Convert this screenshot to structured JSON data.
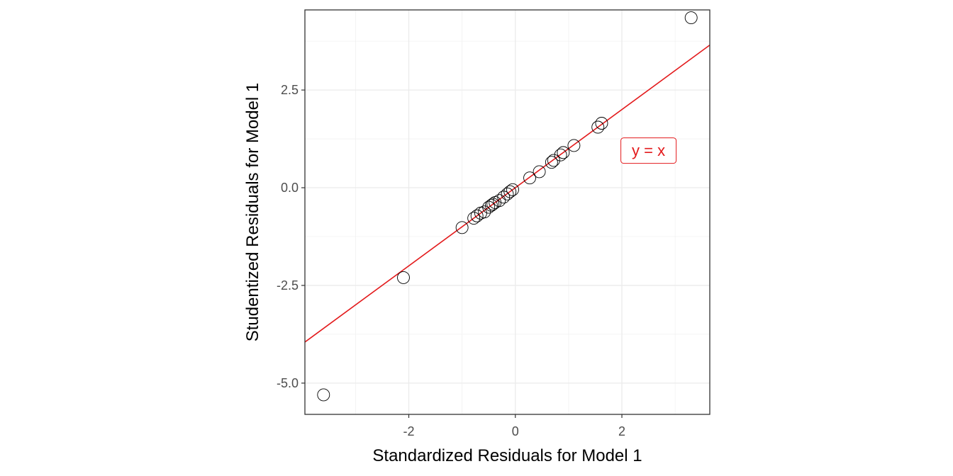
{
  "chart_data": {
    "type": "scatter",
    "title": "",
    "xlabel": "Standardized Residuals for Model 1",
    "ylabel": "Studentized Residuals for Model 1",
    "xlim": [
      -3.95,
      3.65
    ],
    "ylim": [
      -5.8,
      4.55
    ],
    "x_ticks": [
      -2,
      0,
      2
    ],
    "x_tick_labels": [
      "-2",
      "0",
      "2"
    ],
    "y_ticks": [
      -5.0,
      -2.5,
      0.0,
      2.5
    ],
    "y_tick_labels": [
      "-5.0",
      "-2.5",
      "0.0",
      "2.5"
    ],
    "x_minor_ticks": [
      -3,
      -1,
      1,
      3
    ],
    "y_minor_ticks": [
      -3.75,
      -1.25,
      1.25,
      3.75
    ],
    "grid": true,
    "legend": "none",
    "points": {
      "x": [
        -3.6,
        -2.1,
        -1.0,
        -0.78,
        -0.72,
        -0.65,
        -0.58,
        -0.5,
        -0.45,
        -0.42,
        -0.38,
        -0.3,
        -0.22,
        -0.15,
        -0.1,
        -0.05,
        0.27,
        0.45,
        0.68,
        0.72,
        0.85,
        0.9,
        1.1,
        1.55,
        1.62,
        3.3
      ],
      "y": [
        -5.3,
        -2.3,
        -1.02,
        -0.78,
        -0.72,
        -0.65,
        -0.62,
        -0.5,
        -0.45,
        -0.42,
        -0.38,
        -0.33,
        -0.24,
        -0.16,
        -0.1,
        -0.05,
        0.25,
        0.41,
        0.65,
        0.7,
        0.84,
        0.9,
        1.08,
        1.55,
        1.65,
        4.35
      ],
      "marker": "open-circle",
      "color": "#000000"
    },
    "reference_line": {
      "slope": 1,
      "intercept": 0,
      "color": "#e31a1c"
    },
    "annotation": {
      "text": "y = x",
      "x": 2.5,
      "y": 0.95,
      "color": "#e31a1c"
    }
  }
}
